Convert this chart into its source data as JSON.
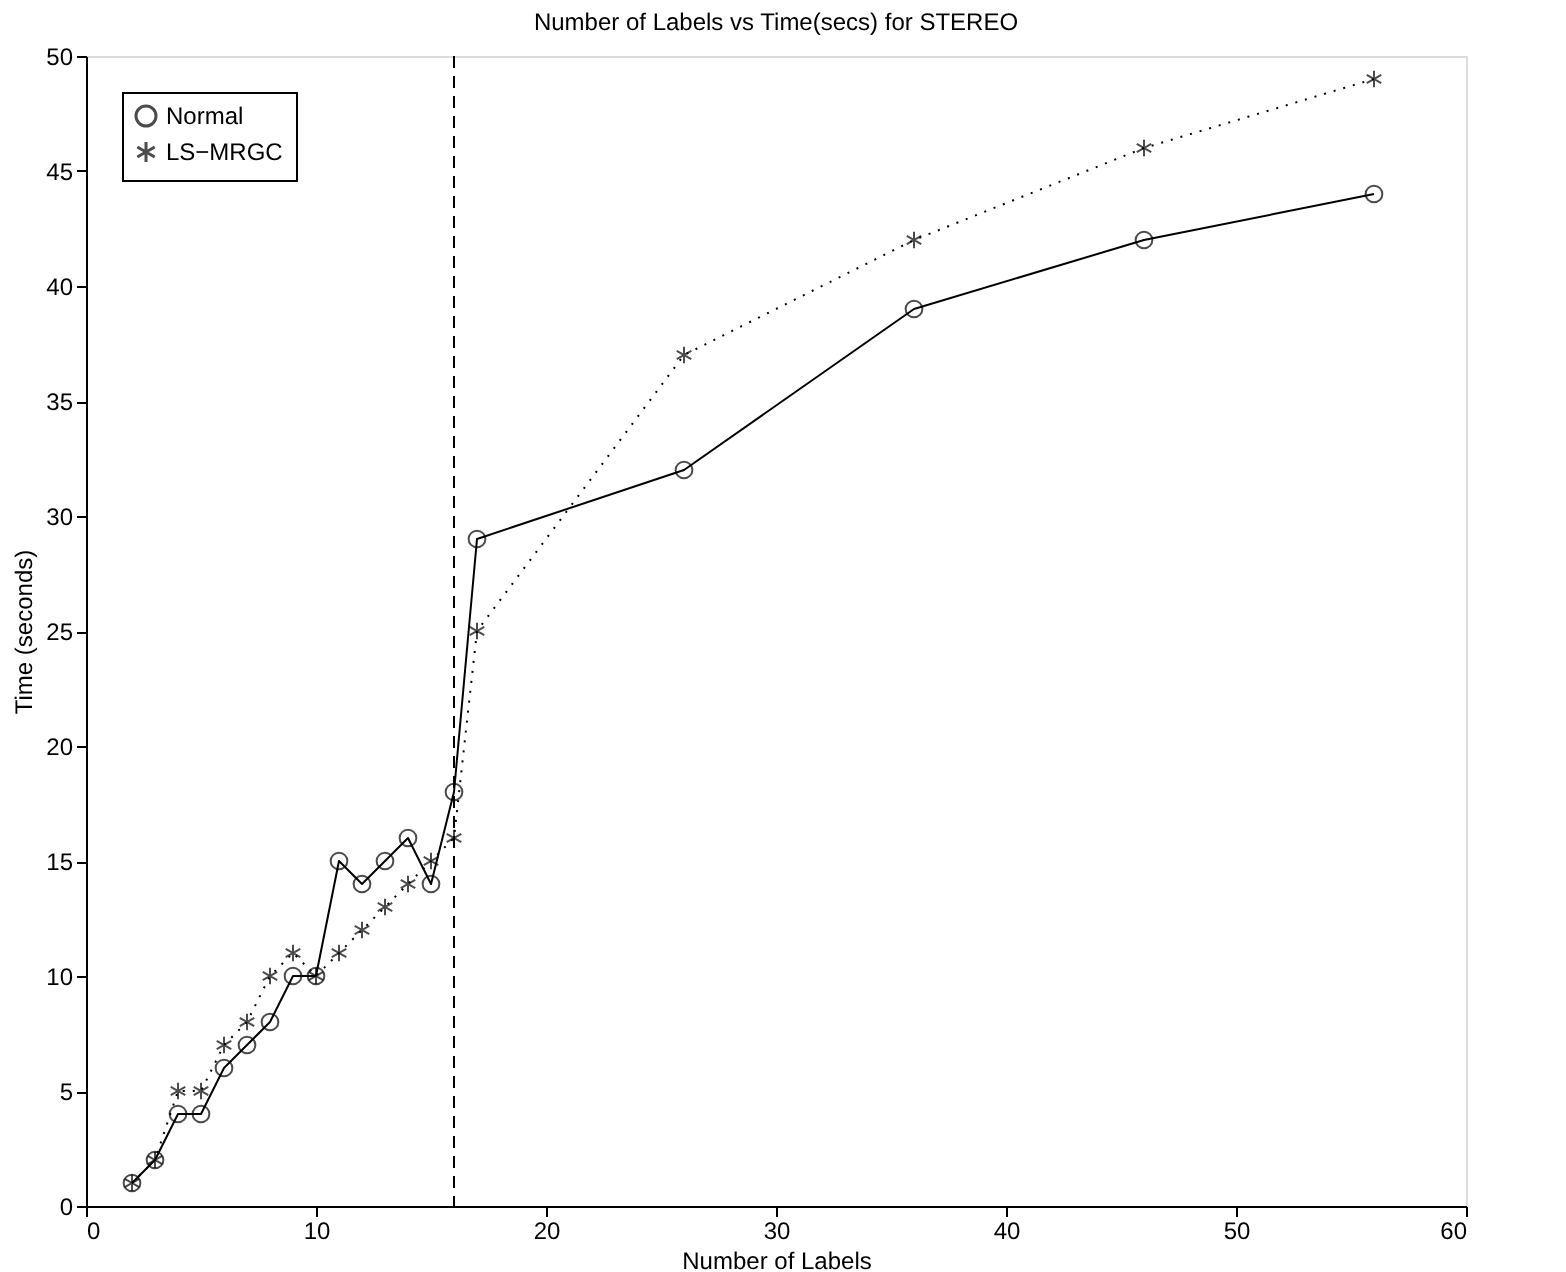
{
  "chart_data": {
    "type": "line",
    "title": "Number of Labels vs Time(secs) for STEREO",
    "xlabel": "Number of Labels",
    "ylabel": "Time (seconds)",
    "x": [
      2,
      3,
      4,
      5,
      6,
      7,
      8,
      9,
      10,
      11,
      12,
      13,
      14,
      15,
      16,
      17,
      26,
      36,
      46,
      56
    ],
    "series": [
      {
        "name": "Normal",
        "color": "#000000",
        "marker": "circle",
        "line_style": "solid",
        "values": [
          1,
          2,
          4,
          4,
          6,
          7,
          8,
          10,
          10,
          15,
          14,
          15,
          16,
          14,
          18,
          29,
          32,
          39,
          42,
          44
        ]
      },
      {
        "name": "LS−MRGC",
        "color": "#000000",
        "marker": "cross",
        "line_style": "dotted",
        "values": [
          1,
          2,
          5,
          5,
          7,
          8,
          10,
          11,
          10,
          11,
          12,
          13,
          14,
          15,
          16,
          25,
          37,
          42,
          46,
          49
        ]
      }
    ],
    "xlim": [
      0,
      60
    ],
    "xticks": [
      0,
      10,
      20,
      30,
      40,
      50,
      60
    ],
    "ylim": [
      0,
      50
    ],
    "yticks": [
      0,
      5,
      10,
      15,
      20,
      25,
      30,
      35,
      40,
      45,
      50
    ],
    "ref_lines": [
      {
        "axis": "x",
        "value": 16,
        "line_style": "dashed",
        "color": "#000000"
      }
    ],
    "grid": false,
    "legend": "top left"
  }
}
